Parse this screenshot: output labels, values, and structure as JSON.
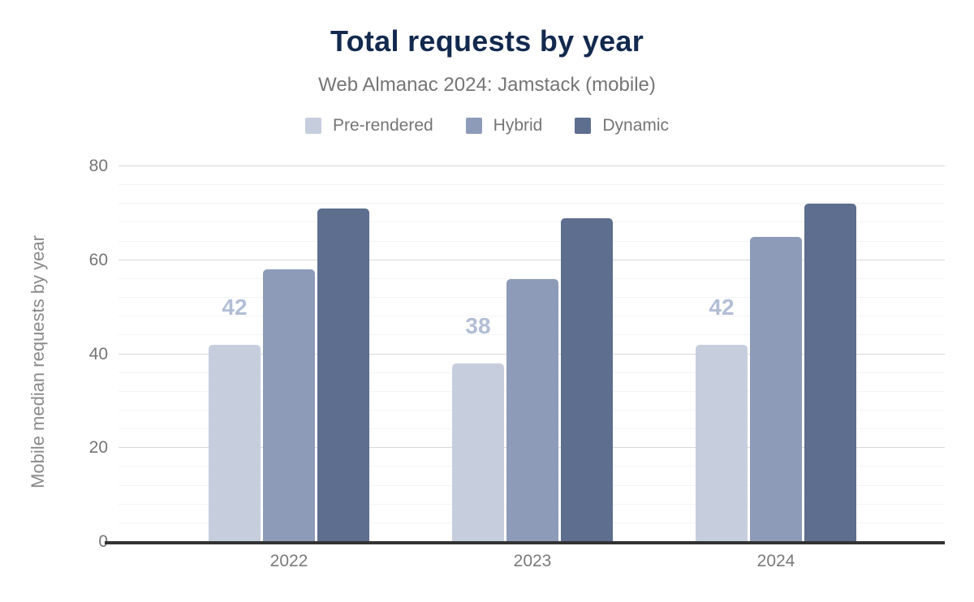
{
  "header": {
    "title": "Total requests by year",
    "subtitle": "Web Almanac 2024: Jamstack (mobile)"
  },
  "chart_data": {
    "type": "bar",
    "title": "Total requests by year",
    "subtitle": "Web Almanac 2024: Jamstack (mobile)",
    "categories": [
      "2022",
      "2023",
      "2024"
    ],
    "series": [
      {
        "name": "Pre-rendered",
        "color": "#c6cede",
        "values": [
          42,
          38,
          42
        ],
        "data_labels": [
          "42",
          "38",
          "42"
        ],
        "data_label_color": "#b2bed5"
      },
      {
        "name": "Hybrid",
        "color": "#8d9bb8",
        "values": [
          58,
          56,
          65
        ]
      },
      {
        "name": "Dynamic",
        "color": "#5d6e8f",
        "values": [
          71,
          69,
          72
        ]
      }
    ],
    "xlabel": "",
    "ylabel": "Mobile median requests by year",
    "ylim": [
      0,
      80
    ],
    "yticks": [
      0,
      20,
      40,
      60,
      80
    ],
    "minor_gridline_step": 4,
    "grid": "on",
    "legend_position": "top"
  },
  "colors": {
    "title": "#13294e",
    "subtitle_text": "#757575",
    "axis_text": "#757575",
    "axis_line": "#333333",
    "gridline_major": "#d9d9d9",
    "gridline_minor": "#f4f4f4",
    "background": "#ffffff"
  }
}
